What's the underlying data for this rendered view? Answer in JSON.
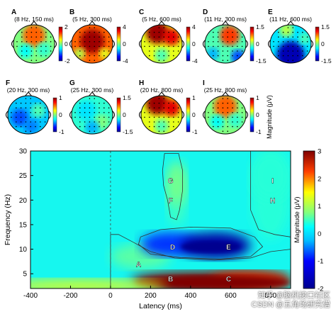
{
  "chart_data": [
    {
      "type": "heatmap",
      "subtype": "topographic_maps",
      "panels": [
        {
          "letter": "A",
          "condition": "(8 Hz, 150 ms)",
          "cbar_ticks": [
            "2",
            "0",
            "-2"
          ],
          "pattern": "frontal_positive"
        },
        {
          "letter": "B",
          "condition": "(5 Hz, 300 ms)",
          "cbar_ticks": [
            "4",
            "0",
            "-4"
          ],
          "pattern": "central_positive_strong"
        },
        {
          "letter": "C",
          "condition": "(5 Hz, 600 ms)",
          "cbar_ticks": [
            "4",
            "0",
            "-4"
          ],
          "pattern": "frontal_positive_strong"
        },
        {
          "letter": "D",
          "condition": "(11 Hz, 300 ms)",
          "cbar_ticks": [
            "1.5",
            "0",
            "-1.5"
          ],
          "pattern": "right_frontal_positive"
        },
        {
          "letter": "E",
          "condition": "(11 Hz, 600 ms)",
          "cbar_ticks": [
            "1.5",
            "0",
            "-1.5"
          ],
          "pattern": "posterior_negative"
        },
        {
          "letter": "F",
          "condition": "(20 Hz, 300 ms)",
          "cbar_ticks": [
            "1",
            "0",
            "-1"
          ],
          "pattern": "diffuse_negative"
        },
        {
          "letter": "G",
          "condition": "(25 Hz, 300 ms)",
          "cbar_ticks": [
            "1.5",
            "0",
            "-1.5"
          ],
          "pattern": "diffuse_weak"
        },
        {
          "letter": "H",
          "condition": "(20 Hz, 800 ms)",
          "cbar_ticks": [
            "1",
            "0",
            "-1"
          ],
          "pattern": "frontal_positive_strong"
        },
        {
          "letter": "I",
          "condition": "(25 Hz, 800 ms)",
          "cbar_ticks": [
            "1",
            "0",
            "-1"
          ],
          "pattern": "frontal_positive"
        }
      ],
      "colorbar_label": "Magnitude (μV)"
    },
    {
      "type": "heatmap",
      "xlabel": "Latency (ms)",
      "ylabel": "Frequency (Hz)",
      "xlim": [
        -400,
        900
      ],
      "ylim": [
        2,
        30
      ],
      "x_ticks": [
        "-400",
        "-200",
        "0",
        "200",
        "400",
        "600",
        "800"
      ],
      "y_ticks": [
        "5",
        "10",
        "15",
        "20",
        "25",
        "30"
      ],
      "colorbar_label": "Magnitude (μV)",
      "colorbar_range": [
        -2,
        3
      ],
      "colorbar_ticks": [
        "3",
        "2",
        "1",
        "0",
        "-1",
        "-2"
      ],
      "stimulus_onset_ms": 0,
      "regions": [
        {
          "label": "A",
          "latency_ms": [
            0,
            300
          ],
          "frequency_hz": [
            6,
            11
          ],
          "magnitude": 0.6
        },
        {
          "label": "B",
          "latency_ms": [
            100,
            900
          ],
          "frequency_hz": [
            2,
            5.5
          ],
          "magnitude": 3
        },
        {
          "label": "C",
          "latency_ms": [
            500,
            900
          ],
          "frequency_hz": [
            2,
            5.5
          ],
          "magnitude": 2.5
        },
        {
          "label": "D",
          "latency_ms": [
            150,
            450
          ],
          "frequency_hz": [
            8.5,
            13.5
          ],
          "magnitude": -0.8
        },
        {
          "label": "E",
          "latency_ms": [
            350,
            700
          ],
          "frequency_hz": [
            8,
            13.5
          ],
          "magnitude": -1.8
        },
        {
          "label": "F",
          "latency_ms": [
            280,
            380
          ],
          "frequency_hz": [
            15,
            26
          ],
          "magnitude": 0.5
        },
        {
          "label": "G",
          "latency_ms": [
            280,
            380
          ],
          "frequency_hz": [
            19,
            28
          ],
          "magnitude": 0.7
        },
        {
          "label": "H",
          "latency_ms": [
            700,
            900
          ],
          "frequency_hz": [
            12,
            30
          ],
          "magnitude": 0.4
        },
        {
          "label": "I",
          "latency_ms": [
            700,
            900
          ],
          "frequency_hz": [
            20,
            30
          ],
          "magnitude": 0.4
        }
      ],
      "point_labels": [
        {
          "text": "G",
          "x": 300,
          "y": 24
        },
        {
          "text": "F",
          "x": 300,
          "y": 20
        },
        {
          "text": "I",
          "x": 810,
          "y": 24
        },
        {
          "text": "H",
          "x": 810,
          "y": 20
        },
        {
          "text": "D",
          "x": 310,
          "y": 10.5
        },
        {
          "text": "E",
          "x": 590,
          "y": 10.5
        },
        {
          "text": "A",
          "x": 140,
          "y": 7
        },
        {
          "text": "B",
          "x": 300,
          "y": 4
        },
        {
          "text": "C",
          "x": 590,
          "y": 4
        }
      ]
    }
  ],
  "watermark": {
    "line1": "知乎 @脑机接口社区",
    "line2": "CSDN @五角场研究僧"
  }
}
